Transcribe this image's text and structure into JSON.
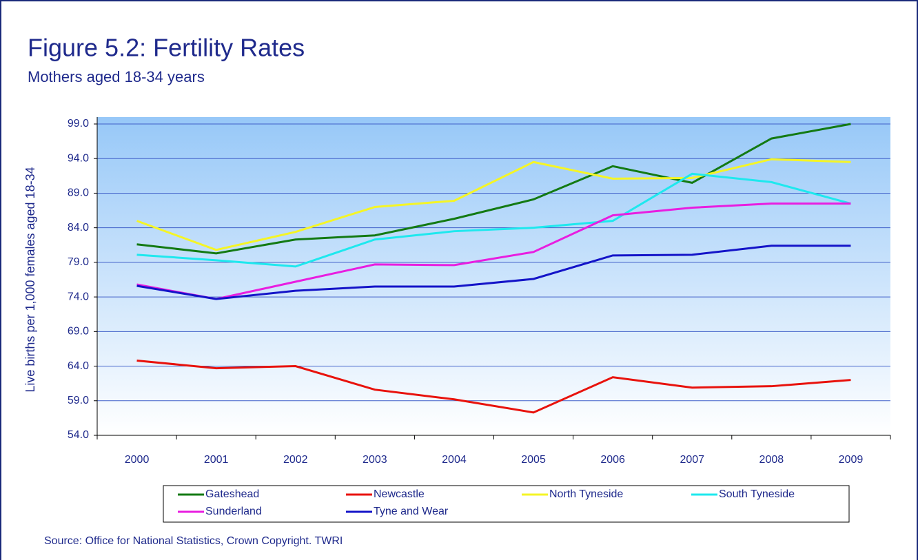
{
  "chart_data": {
    "type": "line",
    "title": "Figure 5.2: Fertility Rates",
    "subtitle": "Mothers aged 18-34 years",
    "y_label": "Live births per 1,000 females aged 18-34",
    "source": "Source: Office for National Statistics, Crown Copyright.  TWRI",
    "categories": [
      "2000",
      "2001",
      "2002",
      "2003",
      "2004",
      "2005",
      "2006",
      "2007",
      "2008",
      "2009"
    ],
    "ylim": [
      54,
      99
    ],
    "yticks": [
      {
        "value": 54,
        "label": "54.0"
      },
      {
        "value": 59,
        "label": "59.0"
      },
      {
        "value": 64,
        "label": "64.0"
      },
      {
        "value": 69,
        "label": "69.0"
      },
      {
        "value": 74,
        "label": "74.0"
      },
      {
        "value": 79,
        "label": "79.0"
      },
      {
        "value": 84,
        "label": "84.0"
      },
      {
        "value": 89,
        "label": "89.0"
      },
      {
        "value": 94,
        "label": "94.0"
      },
      {
        "value": 99,
        "label": "99.0"
      }
    ],
    "grid": true,
    "series": [
      {
        "name": "Gateshead",
        "color": "#137a13",
        "values": [
          81.6,
          80.3,
          82.3,
          82.9,
          85.3,
          88.1,
          92.9,
          90.5,
          96.9,
          99.0
        ]
      },
      {
        "name": "Newcastle",
        "color": "#e8120c",
        "values": [
          64.8,
          63.7,
          64.0,
          60.6,
          59.2,
          57.3,
          62.4,
          60.9,
          61.1,
          62.0
        ]
      },
      {
        "name": "North Tyneside",
        "color": "#f5f526",
        "values": [
          85.0,
          80.8,
          83.4,
          87.0,
          87.9,
          93.5,
          91.1,
          91.2,
          93.9,
          93.5
        ]
      },
      {
        "name": "South Tyneside",
        "color": "#1ee8ee",
        "values": [
          80.1,
          79.3,
          78.4,
          82.3,
          83.5,
          84.0,
          85.0,
          91.8,
          90.6,
          87.5
        ]
      },
      {
        "name": "Sunderland",
        "color": "#e81ee0",
        "values": [
          75.8,
          73.7,
          76.2,
          78.7,
          78.6,
          80.5,
          85.8,
          86.9,
          87.5,
          87.5
        ]
      },
      {
        "name": "Tyne and Wear",
        "color": "#1414c8",
        "values": [
          75.6,
          73.7,
          74.9,
          75.5,
          75.5,
          76.6,
          80.0,
          80.1,
          81.4,
          81.4
        ]
      }
    ]
  }
}
